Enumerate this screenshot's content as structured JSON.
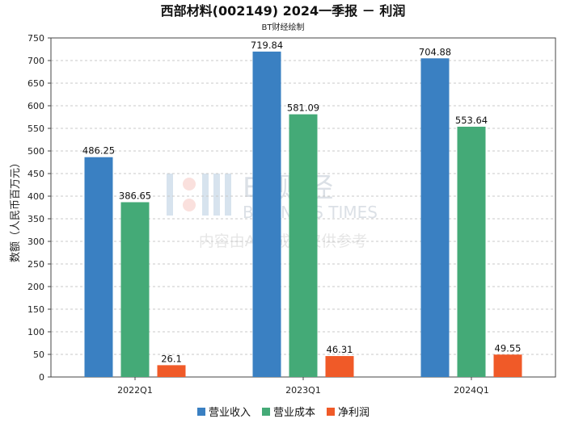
{
  "title": "西部材料(002149) 2024一季报 － 利润",
  "subtitle": "BT财经绘制",
  "watermark": {
    "brand_cn": "BT财经",
    "brand_en": "BUSINESS TIMES",
    "disclaimer": "内容由AI生成，仅供参考"
  },
  "chart_data": {
    "type": "bar",
    "title": "西部材料(002149) 2024一季报 － 利润",
    "subtitle": "BT财经绘制",
    "xlabel": "",
    "ylabel": "数额（人民币百万元）",
    "categories": [
      "2022Q1",
      "2023Q1",
      "2024Q1"
    ],
    "series": [
      {
        "name": "营业收入",
        "color": "#3a80c2",
        "values": [
          486.25,
          719.84,
          704.88
        ]
      },
      {
        "name": "营业成本",
        "color": "#44aa77",
        "values": [
          386.65,
          581.09,
          553.64
        ]
      },
      {
        "name": "净利润",
        "color": "#f05a28",
        "values": [
          26.1,
          46.31,
          49.55
        ]
      }
    ],
    "value_labels": [
      [
        "486.25",
        "719.84",
        "704.88"
      ],
      [
        "386.65",
        "581.09",
        "553.64"
      ],
      [
        "26.1",
        "46.31",
        "49.55"
      ]
    ],
    "ylim": [
      0,
      750
    ],
    "yticks": [
      0,
      50,
      100,
      150,
      200,
      250,
      300,
      350,
      400,
      450,
      500,
      550,
      600,
      650,
      700,
      750
    ],
    "grid": true,
    "legend_position": "bottom-center"
  }
}
